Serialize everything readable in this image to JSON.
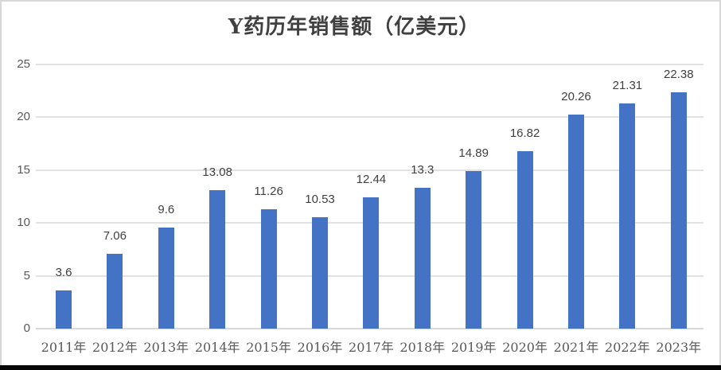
{
  "chart_data": {
    "type": "bar",
    "title": "Y药历年销售额（亿美元）",
    "categories": [
      "2011年",
      "2012年",
      "2013年",
      "2014年",
      "2015年",
      "2016年",
      "2017年",
      "2018年",
      "2019年",
      "2020年",
      "2021年",
      "2022年",
      "2023年"
    ],
    "values": [
      3.6,
      7.06,
      9.6,
      13.08,
      11.26,
      10.53,
      12.44,
      13.3,
      14.89,
      16.82,
      20.26,
      21.31,
      22.38
    ],
    "value_labels": [
      "3.6",
      "7.06",
      "9.6",
      "13.08",
      "11.26",
      "10.53",
      "12.44",
      "13.3",
      "14.89",
      "16.82",
      "20.26",
      "21.31",
      "22.38"
    ],
    "xlabel": "",
    "ylabel": "",
    "ylim": [
      0,
      25
    ],
    "yticks": [
      0,
      5,
      10,
      15,
      20,
      25
    ],
    "grid": true,
    "legend_position": "none",
    "bar_color": "#4472C4",
    "gridline_color": "#E2E2E2",
    "axis_line_color": "#D9D9D9",
    "tick_label_color": "#595959",
    "data_label_color": "#404040",
    "frame_border_color": "#D8D8D8",
    "bottom_strip_color": "#060606"
  }
}
